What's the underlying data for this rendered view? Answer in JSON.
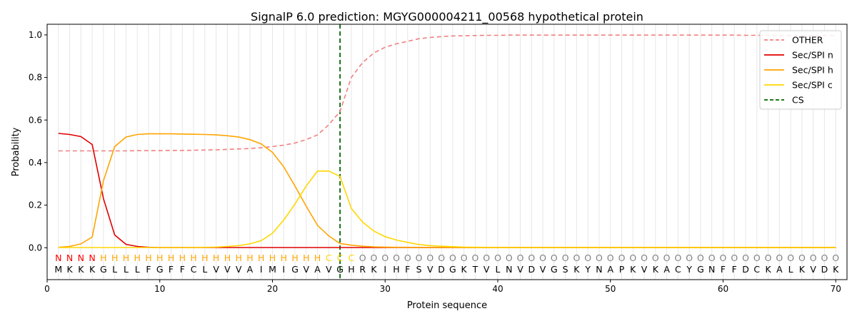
{
  "chart_data": {
    "type": "line",
    "title": "SignalP 6.0 prediction: MGYG000004211_00568 hypothetical protein",
    "xlabel": "Protein sequence",
    "ylabel": "Probability",
    "xlim": [
      0,
      71
    ],
    "ylim": [
      -0.15,
      1.05
    ],
    "x_ticks": [
      0,
      10,
      20,
      30,
      40,
      50,
      60,
      70
    ],
    "y_ticks": [
      0.0,
      0.2,
      0.4,
      0.6,
      0.8,
      1.0
    ],
    "x_tick_labels": [
      "0",
      "10",
      "20",
      "30",
      "40",
      "50",
      "60",
      "70"
    ],
    "y_tick_labels": [
      "0.0",
      "0.2",
      "0.4",
      "0.6",
      "0.8",
      "1.0"
    ],
    "grid": "vertical lines at each residue position",
    "legend_position": "top-right",
    "legend": [
      "OTHER",
      "Sec/SPI n",
      "Sec/SPI h",
      "Sec/SPI c",
      "CS"
    ],
    "sequence": "MKKKGLLLFGFFCLVVVAIMIGVAVGHRKIHFSVDGKTVLNVDVGSKYNAPKVKACYGNFFDCKALKVDK",
    "labels": "NNNNHHHHHHHHHHHHHHHHHHHHCCCOOOOOOOOOOOOOOOOOOOOOOOOOOOOOOOOOOOOOOOOOOOO",
    "label_colors": {
      "N": "#ff0000",
      "H": "#ffa500",
      "C": "#ffd700",
      "O": "#808080"
    },
    "cleavage_site": 26,
    "series": [
      {
        "name": "OTHER",
        "color": "#f08080",
        "style": "dashed",
        "values": [
          0.455,
          0.455,
          0.455,
          0.455,
          0.455,
          0.455,
          0.455,
          0.456,
          0.456,
          0.456,
          0.457,
          0.457,
          0.458,
          0.459,
          0.46,
          0.462,
          0.464,
          0.466,
          0.47,
          0.475,
          0.482,
          0.492,
          0.508,
          0.53,
          0.578,
          0.64,
          0.8,
          0.87,
          0.915,
          0.942,
          0.958,
          0.97,
          0.982,
          0.988,
          0.992,
          0.995,
          0.996,
          0.997,
          0.998,
          0.998,
          0.999,
          0.999,
          0.999,
          0.999,
          0.999,
          0.999,
          0.999,
          0.999,
          0.999,
          0.999,
          0.999,
          0.999,
          0.999,
          0.999,
          0.999,
          0.999,
          0.999,
          0.999,
          0.999,
          0.999,
          0.999,
          0.998,
          0.998,
          0.998,
          0.997,
          0.997,
          0.997,
          0.997,
          0.997,
          0.997
        ]
      },
      {
        "name": "Sec/SPI n",
        "color": "#e00000",
        "style": "solid",
        "values": [
          0.537,
          0.532,
          0.522,
          0.485,
          0.23,
          0.06,
          0.016,
          0.006,
          0.002,
          0.001,
          0.001,
          0.001,
          0.001,
          0.001,
          0.001,
          0.001,
          0.001,
          0.001,
          0.001,
          0.001,
          0.001,
          0.001,
          0.001,
          0.001,
          0.001,
          0.001,
          0.001,
          0.001,
          0.001,
          0.001,
          0.001,
          0.001,
          0.001,
          0.001,
          0.001,
          0.001,
          0.001,
          0.001,
          0.001,
          0.001,
          0.001,
          0.001,
          0.001,
          0.001,
          0.001,
          0.001,
          0.001,
          0.001,
          0.001,
          0.001,
          0.001,
          0.001,
          0.001,
          0.001,
          0.001,
          0.001,
          0.001,
          0.001,
          0.001,
          0.001,
          0.001,
          0.001,
          0.001,
          0.001,
          0.001,
          0.001,
          0.001,
          0.001,
          0.001,
          0.001
        ]
      },
      {
        "name": "Sec/SPI h",
        "color": "#ffa500",
        "style": "solid",
        "values": [
          0.002,
          0.006,
          0.018,
          0.05,
          0.315,
          0.475,
          0.52,
          0.532,
          0.535,
          0.535,
          0.535,
          0.534,
          0.533,
          0.532,
          0.53,
          0.526,
          0.52,
          0.508,
          0.488,
          0.448,
          0.38,
          0.29,
          0.195,
          0.105,
          0.055,
          0.02,
          0.012,
          0.007,
          0.004,
          0.003,
          0.002,
          0.002,
          0.001,
          0.001,
          0.001,
          0.001,
          0.001,
          0.001,
          0.001,
          0.001,
          0.001,
          0.001,
          0.001,
          0.001,
          0.001,
          0.001,
          0.001,
          0.001,
          0.001,
          0.001,
          0.001,
          0.001,
          0.001,
          0.001,
          0.001,
          0.001,
          0.001,
          0.001,
          0.001,
          0.001,
          0.001,
          0.001,
          0.001,
          0.001,
          0.001,
          0.001,
          0.001,
          0.001,
          0.001,
          0.001
        ]
      },
      {
        "name": "Sec/SPI c",
        "color": "#ffd700",
        "style": "solid",
        "values": [
          0.001,
          0.001,
          0.001,
          0.001,
          0.001,
          0.001,
          0.001,
          0.001,
          0.001,
          0.001,
          0.001,
          0.001,
          0.001,
          0.002,
          0.003,
          0.006,
          0.01,
          0.018,
          0.033,
          0.068,
          0.13,
          0.205,
          0.29,
          0.36,
          0.36,
          0.335,
          0.185,
          0.12,
          0.078,
          0.052,
          0.036,
          0.025,
          0.015,
          0.01,
          0.007,
          0.005,
          0.003,
          0.002,
          0.002,
          0.001,
          0.001,
          0.001,
          0.001,
          0.001,
          0.001,
          0.001,
          0.001,
          0.001,
          0.001,
          0.001,
          0.001,
          0.001,
          0.001,
          0.001,
          0.001,
          0.001,
          0.001,
          0.001,
          0.001,
          0.001,
          0.001,
          0.001,
          0.001,
          0.001,
          0.001,
          0.001,
          0.001,
          0.001,
          0.001,
          0.001
        ]
      }
    ],
    "cs_legend": {
      "name": "CS",
      "color": "#006400",
      "style": "dashed"
    }
  }
}
